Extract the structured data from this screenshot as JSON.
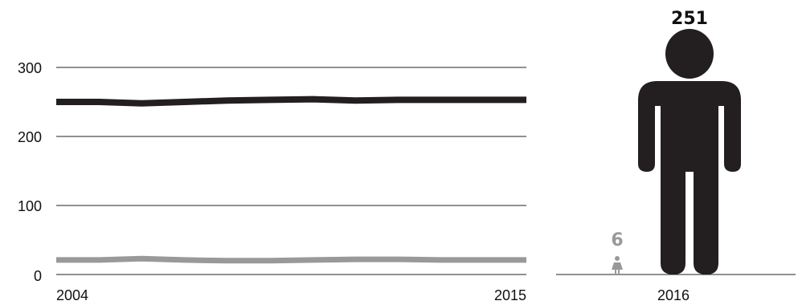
{
  "chart_data": [
    {
      "type": "line",
      "x_start_label": "2004",
      "x_end_label": "2015",
      "x": [
        2004,
        2005,
        2006,
        2007,
        2008,
        2009,
        2010,
        2011,
        2012,
        2013,
        2014,
        2015
      ],
      "ylim": [
        0,
        300
      ],
      "yticks": [
        "300",
        "200",
        "100",
        "0"
      ],
      "grid": true,
      "series": [
        {
          "values": [
            250,
            250,
            248,
            250,
            252,
            253,
            254,
            252,
            253,
            253,
            253,
            253
          ],
          "color": "#231f20"
        },
        {
          "values": [
            21,
            21,
            23,
            21,
            20,
            20,
            21,
            22,
            22,
            21,
            21,
            21
          ],
          "color": "#999999"
        }
      ]
    },
    {
      "type": "bar",
      "categories": [
        "2016"
      ],
      "series": [
        {
          "values": [
            6
          ],
          "label": "6",
          "color": "#999999",
          "icon": "female-figure-icon"
        },
        {
          "values": [
            251
          ],
          "label": "251",
          "color": "#231f20",
          "icon": "male-figure-icon"
        }
      ]
    }
  ]
}
